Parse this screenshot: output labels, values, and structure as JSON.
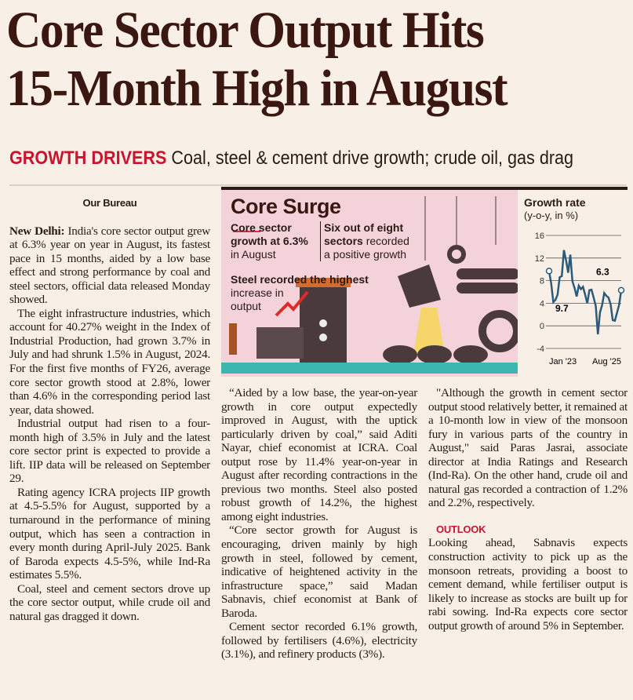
{
  "headline": {
    "line1": "Core Sector Output Hits",
    "line2": "15-Month High in August"
  },
  "subhead": {
    "kicker": "GROWTH DRIVERS",
    "text": "Coal, steel & cement drive growth; crude oil, gas drag"
  },
  "byline": "Our Bureau",
  "article": {
    "dateline": "New Delhi:",
    "p1": "India's core sector output grew at 6.3% year on year in August, its fastest pace in 15 months, aided by a low base effect and strong performance by coal and steel sectors, official data released Monday showed.",
    "p2": "The eight infrastructure industries, which account for 40.27% weight in the Index of Industrial Production, had grown 3.7% in July and had shrunk 1.5% in August, 2024. For the first five months of FY26, average core sector growth stood at 2.8%, lower than 4.6% in the corresponding period last year, data showed.",
    "p3": "Industrial output had risen to a four-month high of 3.5% in July and the latest core sector print is expected to provide a lift. IIP data will be released on September 29.",
    "p4": "Rating agency ICRA projects IIP growth at 4.5-5.5% for August, supported by a turnaround in the performance of mining output, which has seen a contraction in every month during April-July 2025. Bank of Baroda expects 4.5-5%, while Ind-Ra estimates 5.5%.",
    "p5": "Coal, steel and cement sectors drove up the core sector output, while crude oil and natural gas dragged it down.",
    "p6": "“Aided by a low base, the year-on-year growth in core output expectedly improved in August, with the uptick particularly driven by coal,” said Aditi Nayar, chief economist at ICRA. Coal output rose by 11.4% year-on-year in August after recording contractions in the previous two months. Steel also posted robust growth of 14.2%, the highest among eight industries.",
    "p7": "“Core sector growth for August is encouraging, driven mainly by high growth in steel, followed by cement, indicative of heightened activity in the infrastructure space,” said Madan Sabnavis, chief economist at Bank of Baroda.",
    "p8": "Cement sector recorded 6.1% growth, followed by fertilisers (4.6%), electricity (3.1%), and refinery products (3%).",
    "p9": "\"Although the growth in cement sector output stood relatively better, it remained at a 10-month low in view of the monsoon fury in various parts of the country in August,\" said Paras Jasrai, associate director at India Ratings and Research (Ind-Ra). On the other hand, crude oil and natural gas recorded a contraction of 1.2% and 2.2%, respectively.",
    "outlook_label": "OUTLOOK",
    "p10": "Looking ahead, Sabnavis expects construction activity to pick up as the monsoon retreats, providing a boost to cement demand, while fertiliser output is likely to increase as stocks are built up for rabi sowing. Ind-Ra expects core sector output growth of around 5% in September."
  },
  "infographic": {
    "title": "Core Surge",
    "stat1_a": "Core sector",
    "stat1_b": "growth at ",
    "stat1_val": "6.3%",
    "stat1_c": "in August",
    "stat2_a": "Six out of eight",
    "stat2_b": "sectors",
    "stat2_c": " recorded",
    "stat2_d": "a positive growth",
    "stat3_a": "Steel recorded the highest",
    "stat3_b": "increase in",
    "stat3_c": "output"
  },
  "chart_data": {
    "type": "line",
    "title": "Growth rate",
    "subtitle": "(y-o-y, in %)",
    "x_labels": [
      "Jan '23",
      "Aug '25"
    ],
    "ylim": [
      -4,
      16
    ],
    "yticks": [
      16,
      12,
      8,
      4,
      0,
      -4
    ],
    "values": [
      9.7,
      7.5,
      4.2,
      4.6,
      5.5,
      8.6,
      8.8,
      13.4,
      11.6,
      9.4,
      12.6,
      7.9,
      6.7,
      5.2,
      7.1,
      6.5,
      6.9,
      5.5,
      4.0,
      6.3,
      6.4,
      5.0,
      3.5,
      -1.5,
      2.4,
      3.7,
      5.8,
      5.3,
      5.0,
      3.8,
      1.0,
      0.9,
      2.3,
      3.7,
      6.3
    ],
    "annotations": [
      {
        "label": "9.7"
      },
      {
        "label": "6.3"
      }
    ],
    "line_color": "#2d5a78"
  }
}
